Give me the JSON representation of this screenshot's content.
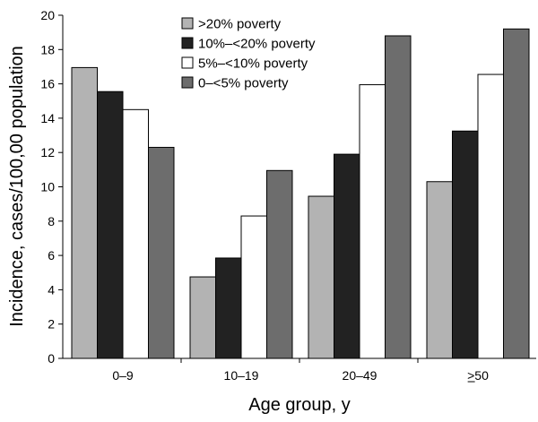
{
  "chart_data": {
    "type": "bar",
    "title": "",
    "xlabel": "Age group, y",
    "ylabel": "Incidence, cases/100,00 population",
    "categories": [
      "0–9",
      "10–19",
      "20–49",
      ">50"
    ],
    "ylim": [
      0,
      20
    ],
    "yticks": [
      0,
      2,
      4,
      6,
      8,
      10,
      12,
      14,
      16,
      18,
      20
    ],
    "legend_position": "top",
    "series": [
      {
        "name": ">20% poverty",
        "color": "#b3b3b3",
        "values": [
          16.95,
          4.75,
          9.45,
          10.3
        ]
      },
      {
        "name": "10%–<20% poverty",
        "color": "#222222",
        "values": [
          15.55,
          5.85,
          11.9,
          13.25
        ]
      },
      {
        "name": "5%–<10% poverty",
        "color": "#ffffff",
        "values": [
          14.5,
          8.3,
          15.95,
          16.55
        ]
      },
      {
        "name": "0–<5% poverty",
        "color": "#6d6d6d",
        "values": [
          12.3,
          10.95,
          18.8,
          19.2
        ]
      }
    ]
  }
}
